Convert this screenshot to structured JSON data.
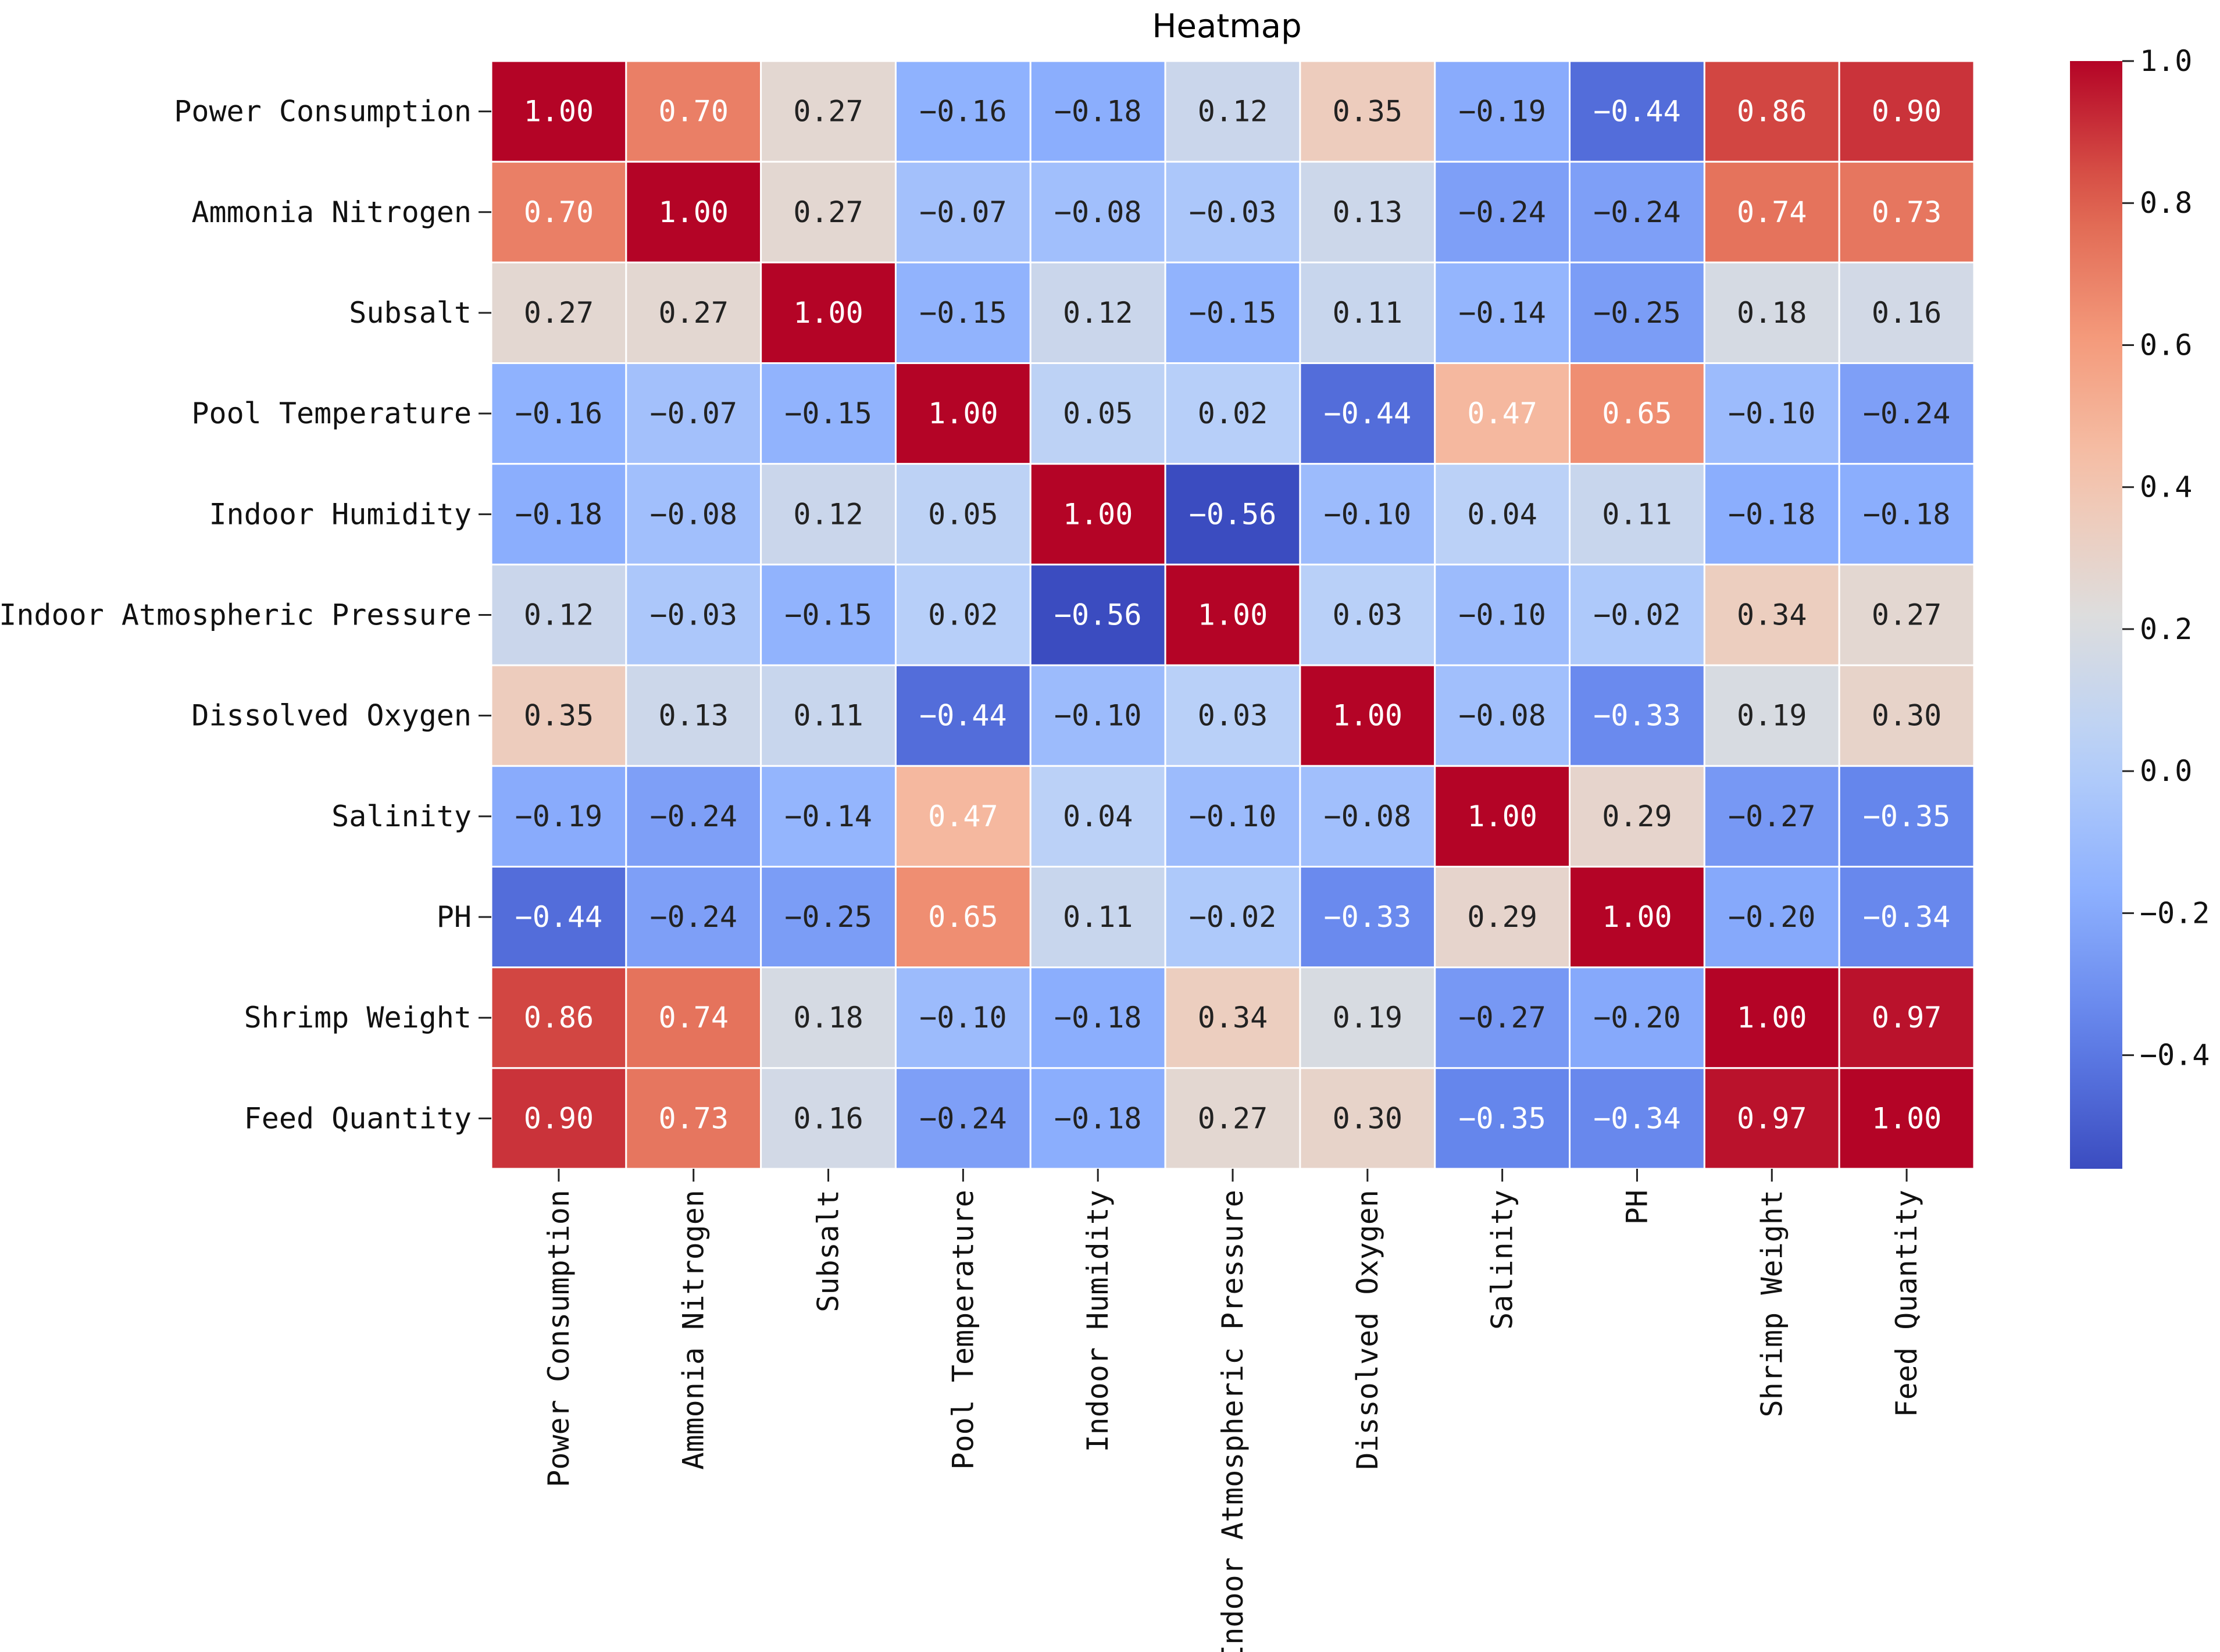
{
  "chart_data": {
    "type": "heatmap",
    "title": "Heatmap",
    "xlabel": "",
    "ylabel": "",
    "labels": [
      "Power Consumption",
      "Ammonia Nitrogen",
      "Subsalt",
      "Pool Temperature",
      "Indoor Humidity",
      "Indoor Atmospheric Pressure",
      "Dissolved Oxygen",
      "Salinity",
      "PH",
      "Shrimp Weight",
      "Feed Quantity"
    ],
    "matrix": [
      [
        1.0,
        0.7,
        0.27,
        -0.16,
        -0.18,
        0.12,
        0.35,
        -0.19,
        -0.44,
        0.86,
        0.9
      ],
      [
        0.7,
        1.0,
        0.27,
        -0.07,
        -0.08,
        -0.03,
        0.13,
        -0.24,
        -0.24,
        0.74,
        0.73
      ],
      [
        0.27,
        0.27,
        1.0,
        -0.15,
        0.12,
        -0.15,
        0.11,
        -0.14,
        -0.25,
        0.18,
        0.16
      ],
      [
        -0.16,
        -0.07,
        -0.15,
        1.0,
        0.05,
        0.02,
        -0.44,
        0.47,
        0.65,
        -0.1,
        -0.24
      ],
      [
        -0.18,
        -0.08,
        0.12,
        0.05,
        1.0,
        -0.56,
        -0.1,
        0.04,
        0.11,
        -0.18,
        -0.18
      ],
      [
        0.12,
        -0.03,
        -0.15,
        0.02,
        -0.56,
        1.0,
        0.03,
        -0.1,
        -0.02,
        0.34,
        0.27
      ],
      [
        0.35,
        0.13,
        0.11,
        -0.44,
        -0.1,
        0.03,
        1.0,
        -0.08,
        -0.33,
        0.19,
        0.3
      ],
      [
        -0.19,
        -0.24,
        -0.14,
        0.47,
        0.04,
        -0.1,
        -0.08,
        1.0,
        0.29,
        -0.27,
        -0.35
      ],
      [
        -0.44,
        -0.24,
        -0.25,
        0.65,
        0.11,
        -0.02,
        -0.33,
        0.29,
        1.0,
        -0.2,
        -0.34
      ],
      [
        0.86,
        0.74,
        0.18,
        -0.1,
        -0.18,
        0.34,
        0.19,
        -0.27,
        -0.2,
        1.0,
        0.97
      ],
      [
        0.9,
        0.73,
        0.16,
        -0.24,
        -0.18,
        0.27,
        0.3,
        -0.35,
        -0.34,
        0.97,
        1.0
      ]
    ],
    "value_format": "0.00",
    "colormap": "coolwarm",
    "color_range": [
      -0.56,
      1.0
    ],
    "colorbar_ticks": [
      1.0,
      0.8,
      0.6,
      0.4,
      0.2,
      0.0,
      -0.2,
      -0.4
    ],
    "colorbar_tick_labels": [
      "1.0",
      "0.8",
      "0.6",
      "0.4",
      "0.2",
      "0.0",
      "−0.2",
      "−0.4"
    ],
    "legend_placement": "right"
  }
}
